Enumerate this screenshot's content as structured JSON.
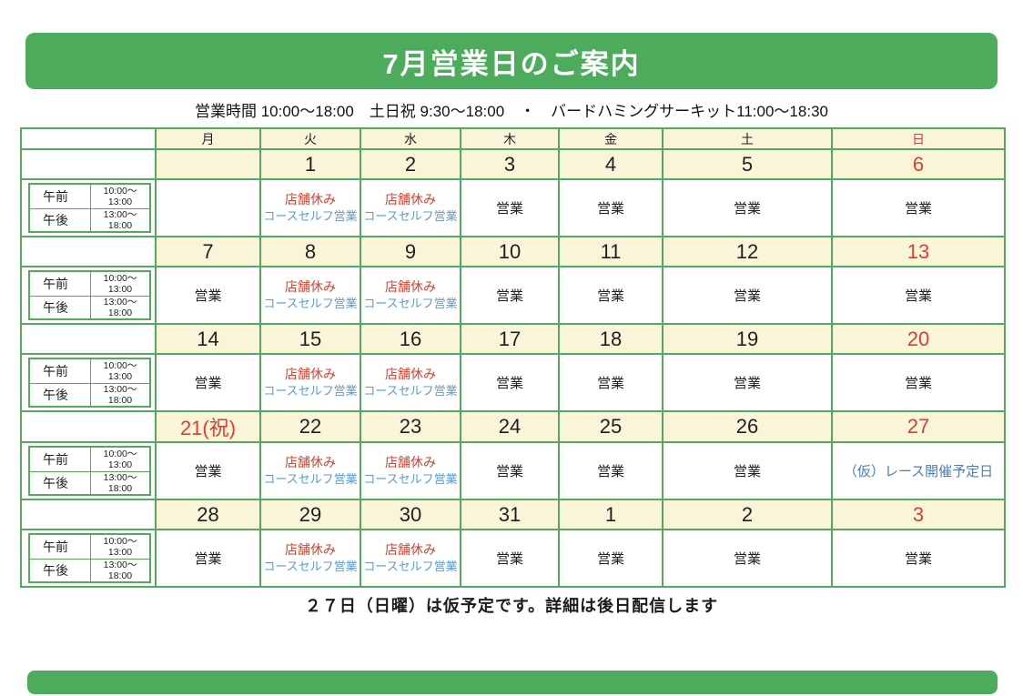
{
  "page": {
    "title": "7月営業日のご案内",
    "subtitle": "営業時間 10:00～18:00　土日祝 9:30～18:00　・　バードハミングサーキット11:00～18:30",
    "footer_note": "２７日（日曜）は仮予定です。詳細は後日配信します"
  },
  "colors": {
    "banner_green": "#4cac5c",
    "table_border_green": "#54a95f",
    "date_row_cream": "#faf5d8",
    "holiday_red": "#d9402f",
    "self_service_blue": "#5b9bd5",
    "race_blue": "#4a7ebb"
  },
  "calendar": {
    "weekday_headers": [
      {
        "label": "月",
        "red": false
      },
      {
        "label": "火",
        "red": false
      },
      {
        "label": "水",
        "red": false
      },
      {
        "label": "木",
        "red": false
      },
      {
        "label": "金",
        "red": false
      },
      {
        "label": "土",
        "red": false
      },
      {
        "label": "日",
        "red": true
      }
    ],
    "time_labels": {
      "morning_label": "午前",
      "morning_time_lines": [
        "10:00～",
        "13:00"
      ],
      "afternoon_label": "午後",
      "afternoon_time_lines": [
        "13:00～",
        "18:00"
      ]
    },
    "statuses": {
      "open": "営業",
      "closed_line1": "店舗休み",
      "closed_line2": "コースセルフ営業",
      "race": "（仮）レース開催予定日"
    },
    "weeks": [
      {
        "dates": [
          {
            "label": "",
            "red": false
          },
          {
            "label": "1",
            "red": false
          },
          {
            "label": "2",
            "red": false
          },
          {
            "label": "3",
            "red": false
          },
          {
            "label": "4",
            "red": false
          },
          {
            "label": "5",
            "red": false
          },
          {
            "label": "6",
            "red": true
          }
        ],
        "cells": [
          "none",
          "closed",
          "closed",
          "open",
          "open",
          "open",
          "open"
        ]
      },
      {
        "dates": [
          {
            "label": "7",
            "red": false
          },
          {
            "label": "8",
            "red": false
          },
          {
            "label": "9",
            "red": false
          },
          {
            "label": "10",
            "red": false
          },
          {
            "label": "11",
            "red": false
          },
          {
            "label": "12",
            "red": false
          },
          {
            "label": "13",
            "red": true
          }
        ],
        "cells": [
          "open",
          "closed",
          "closed",
          "open",
          "open",
          "open",
          "open"
        ]
      },
      {
        "dates": [
          {
            "label": "14",
            "red": false
          },
          {
            "label": "15",
            "red": false
          },
          {
            "label": "16",
            "red": false
          },
          {
            "label": "17",
            "red": false
          },
          {
            "label": "18",
            "red": false
          },
          {
            "label": "19",
            "red": false
          },
          {
            "label": "20",
            "red": true
          }
        ],
        "cells": [
          "open",
          "closed",
          "closed",
          "open",
          "open",
          "open",
          "open"
        ]
      },
      {
        "dates": [
          {
            "label": "21(祝)",
            "red": true
          },
          {
            "label": "22",
            "red": false
          },
          {
            "label": "23",
            "red": false
          },
          {
            "label": "24",
            "red": false
          },
          {
            "label": "25",
            "red": false
          },
          {
            "label": "26",
            "red": false
          },
          {
            "label": "27",
            "red": true
          }
        ],
        "cells": [
          "open",
          "closed",
          "closed",
          "open",
          "open",
          "open",
          "race"
        ]
      },
      {
        "dates": [
          {
            "label": "28",
            "red": false
          },
          {
            "label": "29",
            "red": false
          },
          {
            "label": "30",
            "red": false
          },
          {
            "label": "31",
            "red": false
          },
          {
            "label": "1",
            "red": false
          },
          {
            "label": "2",
            "red": false
          },
          {
            "label": "3",
            "red": true
          }
        ],
        "cells": [
          "open",
          "closed",
          "closed",
          "open",
          "open",
          "open",
          "open"
        ]
      }
    ]
  }
}
